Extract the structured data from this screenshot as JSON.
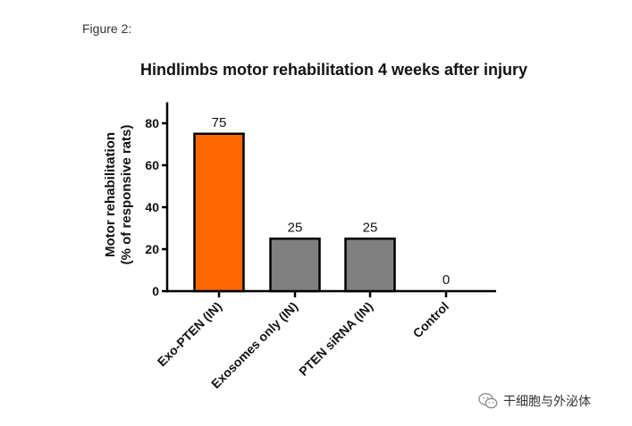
{
  "figure_label": "Figure 2:",
  "watermark": {
    "icon": "wechat-icon",
    "text": "干细胞与外泌体"
  },
  "chart_data": {
    "type": "bar",
    "title": "Hindlimbs motor rehabilitation 4 weeks after injury",
    "ylabel": "Motor rehabilitation",
    "ylabel_line2": "(% of responsive rats)",
    "xlabel": "",
    "categories": [
      "Exo-PTEN (IN)",
      "Exosomes only (IN)",
      "PTEN siRNA (IN)",
      "Control"
    ],
    "values": [
      75,
      25,
      25,
      0
    ],
    "data_labels": [
      "75",
      "25",
      "25",
      "0"
    ],
    "colors": [
      "#ff6600",
      "#808080",
      "#808080",
      "#808080"
    ],
    "ylim": [
      0,
      90
    ],
    "yticks": [
      0,
      20,
      40,
      60,
      80
    ],
    "grid": false,
    "legend": "none"
  }
}
